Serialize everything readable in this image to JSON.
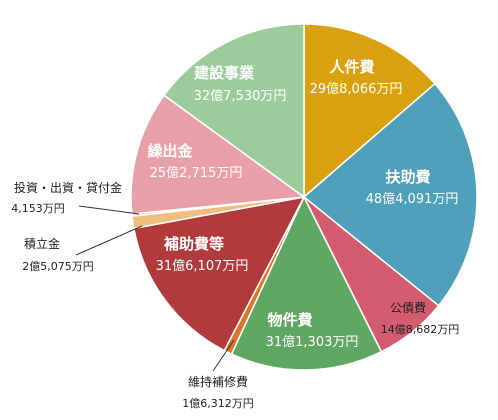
{
  "chart_data": {
    "type": "pie",
    "title": "",
    "unit": "",
    "start_angle_deg": 0,
    "direction": "clockwise",
    "slices": [
      {
        "label": "人件費",
        "value_text": "29億8,066万円",
        "value": 298066,
        "color": "#D9A10D",
        "label_style": "inside",
        "text_color": "#ffffff"
      },
      {
        "label": "扶助費",
        "value_text": "48億4,091万円",
        "value": 484091,
        "color": "#4FA0BA",
        "label_style": "inside",
        "text_color": "#ffffff"
      },
      {
        "label": "公債費",
        "value_text": "14億8,682万円",
        "value": 148682,
        "color": "#D35C70",
        "label_style": "outside",
        "text_color": "#222222"
      },
      {
        "label": "物件費",
        "value_text": "31億1,303万円",
        "value": 311303,
        "color": "#5FA864",
        "label_style": "inside",
        "text_color": "#ffffff"
      },
      {
        "label": "維持補修費",
        "value_text": "1億6,312万円",
        "value": 16312,
        "color": "#D8772A",
        "label_style": "callout",
        "text_color": "#222222"
      },
      {
        "label": "補助費等",
        "value_text": "31億6,107万円",
        "value": 316107,
        "color": "#B23A3D",
        "label_style": "inside",
        "text_color": "#ffffff"
      },
      {
        "label": "積立金",
        "value_text": "2億5,075万円",
        "value": 25075,
        "color": "#F0BE7C",
        "label_style": "callout",
        "text_color": "#222222"
      },
      {
        "label": "投資・出資・貸付金",
        "value_text": "4,153万円",
        "value": 4153,
        "color": "#BFB2CE",
        "label_style": "callout",
        "text_color": "#222222"
      },
      {
        "label": "繰出金",
        "value_text": "25億2,715万円",
        "value": 252715,
        "color": "#EAA0A8",
        "label_style": "inside",
        "text_color": "#ffffff"
      },
      {
        "label": "建設事業",
        "value_text": "32億7,530万円",
        "value": 327530,
        "color": "#9CCC9C",
        "label_style": "inside",
        "text_color": "#ffffff"
      }
    ]
  }
}
